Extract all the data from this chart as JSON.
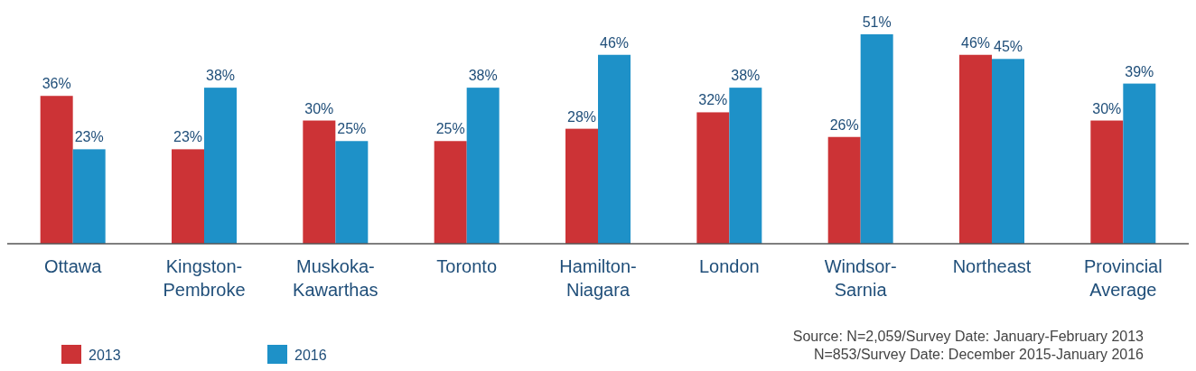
{
  "chart_data": {
    "type": "bar",
    "categories": [
      "Ottawa",
      "Kingston-Pembroke",
      "Muskoka-Kawarthas",
      "Toronto",
      "Hamilton-Niagara",
      "London",
      "Windsor-Sarnia",
      "Northeast",
      "Provincial Average"
    ],
    "series": [
      {
        "name": "2013",
        "color": "#cc3336",
        "values": [
          36,
          23,
          30,
          25,
          28,
          32,
          26,
          46,
          30
        ],
        "value_labels": [
          "36%",
          "23%",
          "30%",
          "25%",
          "28%",
          "32%",
          "26%",
          "46%",
          "30%"
        ]
      },
      {
        "name": "2016",
        "color": "#1e91c8",
        "values": [
          23,
          38,
          25,
          38,
          46,
          38,
          51,
          45,
          39
        ],
        "value_labels": [
          "23%",
          "38%",
          "25%",
          "38%",
          "46%",
          "38%",
          "51%",
          "45%",
          "39%"
        ]
      }
    ],
    "legend": "bottom left",
    "annotations": [
      "Source: N=2,059/Survey Date: January-February 2013",
      "N=853/Survey Date: December 2015-January 2016"
    ]
  }
}
